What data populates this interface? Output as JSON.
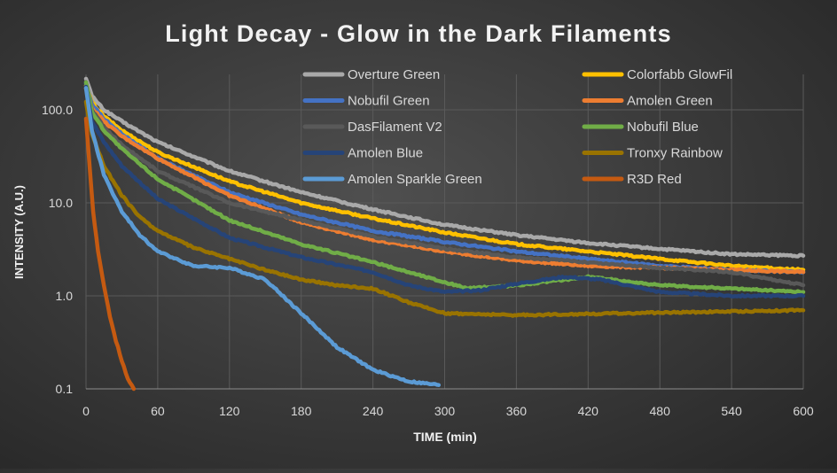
{
  "chart_data": {
    "type": "line",
    "title": "Light Decay - Glow in the Dark Filaments",
    "xlabel": "TIME (min)",
    "ylabel": "INTENSITY (A.U.)",
    "x_scale": "linear",
    "y_scale": "log",
    "xlim": [
      0,
      600
    ],
    "ylim": [
      0.1,
      200
    ],
    "x_ticks": [
      "0",
      "60",
      "120",
      "180",
      "240",
      "300",
      "360",
      "420",
      "480",
      "540",
      "600"
    ],
    "y_ticks": [
      {
        "value": 0.1,
        "label": "0.1"
      },
      {
        "value": 1,
        "label": "1.0"
      },
      {
        "value": 10,
        "label": "10.0"
      },
      {
        "value": 100,
        "label": "100.0"
      }
    ],
    "grid": true,
    "legend_position": "top-right, two columns inside plot",
    "series": [
      {
        "name": "Overture Green",
        "color": "#a9a9a9",
        "x": [
          0,
          5,
          15,
          30,
          60,
          120,
          180,
          240,
          300,
          360,
          420,
          480,
          540,
          600
        ],
        "y": [
          220,
          140,
          100,
          75,
          45,
          22,
          13,
          8.5,
          5.8,
          4.5,
          3.7,
          3.2,
          2.8,
          2.7
        ]
      },
      {
        "name": "Colorfabb GlowFil",
        "color": "#ffc000",
        "x": [
          0,
          5,
          15,
          30,
          60,
          120,
          180,
          240,
          300,
          360,
          420,
          480,
          540,
          600
        ],
        "y": [
          180,
          120,
          85,
          60,
          35,
          17,
          10,
          6.8,
          4.8,
          3.6,
          3.0,
          2.5,
          2.1,
          1.9
        ]
      },
      {
        "name": "Nobufil Green",
        "color": "#4472c4",
        "x": [
          0,
          5,
          15,
          30,
          60,
          120,
          180,
          240,
          300,
          360,
          420,
          480,
          540,
          600
        ],
        "y": [
          190,
          115,
          80,
          55,
          30,
          13,
          7.5,
          5.0,
          3.8,
          3.0,
          2.5,
          2.1,
          1.9,
          1.8
        ]
      },
      {
        "name": "Amolen Green",
        "color": "#ed7d31",
        "x": [
          0,
          5,
          15,
          30,
          60,
          120,
          180,
          240,
          300,
          360,
          420,
          480,
          540,
          600
        ],
        "y": [
          170,
          105,
          75,
          52,
          30,
          12,
          6.2,
          4.0,
          3.0,
          2.4,
          2.1,
          2.0,
          1.9,
          1.8
        ]
      },
      {
        "name": "DasFilament V2",
        "color": "#595959",
        "x": [
          0,
          5,
          15,
          30,
          60,
          120,
          180,
          240,
          300,
          360,
          420,
          480,
          540,
          600
        ],
        "y": [
          200,
          100,
          65,
          42,
          22,
          10,
          6.5,
          4.3,
          3.2,
          2.6,
          2.3,
          2.0,
          1.8,
          1.3
        ]
      },
      {
        "name": "Nobufil Blue",
        "color": "#70ad47",
        "x": [
          0,
          5,
          15,
          30,
          60,
          120,
          180,
          240,
          270,
          300,
          320,
          360,
          420,
          480,
          540,
          600
        ],
        "y": [
          200,
          95,
          60,
          38,
          18,
          6.5,
          3.6,
          2.3,
          1.8,
          1.4,
          1.2,
          1.3,
          1.6,
          1.3,
          1.2,
          1.1
        ]
      },
      {
        "name": "Amolen Blue",
        "color": "#264478",
        "x": [
          0,
          5,
          15,
          30,
          60,
          120,
          180,
          240,
          270,
          300,
          330,
          360,
          400,
          430,
          480,
          540,
          600
        ],
        "y": [
          180,
          75,
          45,
          25,
          11,
          4.2,
          2.6,
          1.8,
          1.3,
          1.1,
          1.15,
          1.35,
          1.6,
          1.5,
          1.1,
          1.0,
          1.0
        ]
      },
      {
        "name": "Tronxy Rainbow",
        "color": "#997300",
        "x": [
          0,
          5,
          15,
          30,
          45,
          60,
          90,
          120,
          150,
          180,
          210,
          240,
          270,
          300,
          360,
          420,
          480,
          540,
          600
        ],
        "y": [
          120,
          55,
          25,
          12,
          7.0,
          5.0,
          3.3,
          2.5,
          1.9,
          1.5,
          1.3,
          1.2,
          0.85,
          0.65,
          0.62,
          0.64,
          0.66,
          0.68,
          0.7
        ]
      },
      {
        "name": "Amolen Sparkle Green",
        "color": "#5b9bd5",
        "x": [
          0,
          5,
          15,
          30,
          45,
          60,
          90,
          120,
          150,
          180,
          210,
          240,
          270,
          295
        ],
        "y": [
          170,
          60,
          20,
          8.0,
          4.5,
          3.0,
          2.1,
          2.0,
          1.5,
          0.65,
          0.28,
          0.16,
          0.12,
          0.11
        ]
      },
      {
        "name": "R3D Red",
        "color": "#c55a11",
        "x": [
          0,
          3,
          6,
          10,
          15,
          20,
          25,
          30,
          35,
          40
        ],
        "y": [
          80,
          25,
          8,
          3.0,
          1.3,
          0.6,
          0.33,
          0.2,
          0.13,
          0.1
        ]
      }
    ]
  }
}
